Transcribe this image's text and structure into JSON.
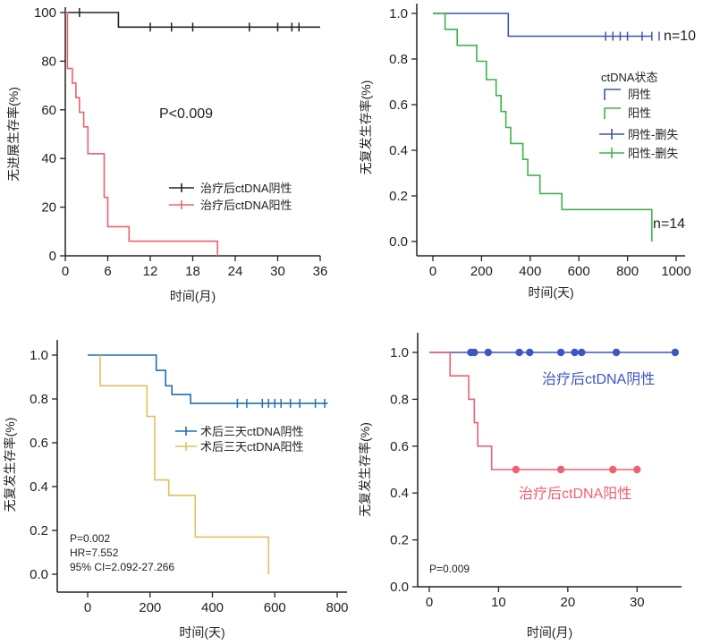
{
  "chart_data": [
    {
      "type": "line",
      "subtype": "kaplan-meier",
      "xlabel": "时间(月)",
      "ylabel": "无进展生存率(%)",
      "xlim": [
        0,
        36
      ],
      "ylim": [
        0,
        100
      ],
      "xticks": [
        0,
        6,
        12,
        18,
        24,
        30,
        36
      ],
      "yticks": [
        0,
        20,
        40,
        60,
        80,
        100
      ],
      "annotations": [
        "P<0.009"
      ],
      "legend_position": "right",
      "series": [
        {
          "name": "治疗后ctDNA阴性",
          "color": "#222222",
          "steps": [
            [
              0,
              100
            ],
            [
              7.5,
              100
            ],
            [
              7.5,
              94
            ],
            [
              36,
              94
            ]
          ],
          "censors": [
            [
              2,
              100
            ],
            [
              12,
              94
            ],
            [
              15,
              94
            ],
            [
              18,
              94
            ],
            [
              26,
              94
            ],
            [
              30,
              94
            ],
            [
              32,
              94
            ],
            [
              33,
              94
            ]
          ]
        },
        {
          "name": "治疗后ctDNA阳性",
          "color": "#ee6070",
          "steps": [
            [
              0,
              100
            ],
            [
              0.3,
              100
            ],
            [
              0.3,
              77
            ],
            [
              1,
              77
            ],
            [
              1,
              71
            ],
            [
              1.5,
              71
            ],
            [
              1.5,
              65
            ],
            [
              2,
              65
            ],
            [
              2,
              59
            ],
            [
              2.6,
              59
            ],
            [
              2.6,
              53
            ],
            [
              3.2,
              53
            ],
            [
              3.2,
              42
            ],
            [
              5.5,
              42
            ],
            [
              5.5,
              24
            ],
            [
              6,
              24
            ],
            [
              6,
              12
            ],
            [
              9,
              12
            ],
            [
              9,
              6
            ],
            [
              21.5,
              6
            ],
            [
              21.5,
              0
            ]
          ],
          "censors": []
        }
      ]
    },
    {
      "type": "line",
      "subtype": "kaplan-meier",
      "xlabel": "时间(天)",
      "ylabel": "无复发生存率(%)",
      "xlim": [
        0,
        1000
      ],
      "ylim": [
        0,
        1.0
      ],
      "xticks": [
        0,
        200,
        400,
        600,
        800,
        1000
      ],
      "yticks": [
        0.0,
        0.2,
        0.4,
        0.6,
        0.8,
        1.0
      ],
      "ytick_labels": [
        "0.0",
        "0.2",
        "0.4",
        "0.6",
        "0.8",
        "1.0"
      ],
      "legend_title": "ctDNA状态",
      "legend_items": [
        {
          "label": "阴性",
          "color": "#3a55b0",
          "marker": "step"
        },
        {
          "label": "阳性",
          "color": "#3fb24a",
          "marker": "step"
        },
        {
          "label": "阴性-删失",
          "color": "#3a55b0",
          "marker": "plus"
        },
        {
          "label": "阳性-删失",
          "color": "#3fb24a",
          "marker": "plus"
        }
      ],
      "annotations": [
        "n=10",
        "n=14"
      ],
      "series": [
        {
          "name": "阴性",
          "color": "#3a55b0",
          "steps": [
            [
              0,
              1.0
            ],
            [
              310,
              1.0
            ],
            [
              310,
              0.9
            ],
            [
              900,
              0.9
            ]
          ],
          "censors": [
            [
              710,
              0.9
            ],
            [
              740,
              0.9
            ],
            [
              770,
              0.9
            ],
            [
              800,
              0.9
            ],
            [
              860,
              0.9
            ],
            [
              900,
              0.9
            ],
            [
              930,
              0.9
            ]
          ]
        },
        {
          "name": "阳性",
          "color": "#3fb24a",
          "steps": [
            [
              0,
              1.0
            ],
            [
              50,
              1.0
            ],
            [
              50,
              0.93
            ],
            [
              100,
              0.93
            ],
            [
              100,
              0.86
            ],
            [
              180,
              0.86
            ],
            [
              180,
              0.79
            ],
            [
              220,
              0.79
            ],
            [
              220,
              0.71
            ],
            [
              260,
              0.71
            ],
            [
              260,
              0.64
            ],
            [
              280,
              0.64
            ],
            [
              280,
              0.57
            ],
            [
              300,
              0.57
            ],
            [
              300,
              0.5
            ],
            [
              320,
              0.5
            ],
            [
              320,
              0.43
            ],
            [
              370,
              0.43
            ],
            [
              370,
              0.36
            ],
            [
              390,
              0.36
            ],
            [
              390,
              0.29
            ],
            [
              440,
              0.29
            ],
            [
              440,
              0.21
            ],
            [
              530,
              0.21
            ],
            [
              530,
              0.14
            ],
            [
              900,
              0.14
            ],
            [
              900,
              0.0
            ]
          ],
          "censors": []
        }
      ]
    },
    {
      "type": "line",
      "subtype": "kaplan-meier",
      "xlabel": "时间(天)",
      "ylabel": "无复发生存率(%)",
      "xlim": [
        0,
        800
      ],
      "ylim": [
        0,
        1.0
      ],
      "xticks": [
        0,
        200,
        400,
        600,
        800
      ],
      "yticks": [
        0.0,
        0.2,
        0.4,
        0.6,
        0.8,
        1.0
      ],
      "ytick_labels": [
        "0.0",
        "0.2",
        "0.4",
        "0.6",
        "0.8",
        "1.0"
      ],
      "legend_position": "right",
      "annotations": [
        "P=0.002",
        "HR=7.552",
        "95% CI=2.092-27.266"
      ],
      "series": [
        {
          "name": "术后三天ctDNA阴性",
          "color": "#1f6fb0",
          "steps": [
            [
              0,
              1.0
            ],
            [
              220,
              1.0
            ],
            [
              220,
              0.93
            ],
            [
              250,
              0.93
            ],
            [
              250,
              0.86
            ],
            [
              270,
              0.86
            ],
            [
              270,
              0.82
            ],
            [
              330,
              0.82
            ],
            [
              330,
              0.78
            ],
            [
              770,
              0.78
            ]
          ],
          "censors": [
            [
              480,
              0.78
            ],
            [
              510,
              0.78
            ],
            [
              560,
              0.78
            ],
            [
              580,
              0.78
            ],
            [
              600,
              0.78
            ],
            [
              620,
              0.78
            ],
            [
              650,
              0.78
            ],
            [
              680,
              0.78
            ],
            [
              730,
              0.78
            ],
            [
              760,
              0.78
            ]
          ]
        },
        {
          "name": "术后三天ctDNA阳性",
          "color": "#e0c060",
          "steps": [
            [
              40,
              1.0
            ],
            [
              40,
              0.86
            ],
            [
              190,
              0.86
            ],
            [
              190,
              0.72
            ],
            [
              215,
              0.72
            ],
            [
              215,
              0.43
            ],
            [
              260,
              0.43
            ],
            [
              260,
              0.36
            ],
            [
              345,
              0.36
            ],
            [
              345,
              0.17
            ],
            [
              580,
              0.17
            ],
            [
              580,
              0.0
            ]
          ],
          "censors": []
        }
      ]
    },
    {
      "type": "line",
      "subtype": "kaplan-meier",
      "xlabel": "时间(月)",
      "ylabel": "无复发生存率(%)",
      "xlim": [
        0,
        35
      ],
      "ylim": [
        0,
        1.0
      ],
      "xticks": [
        0,
        10,
        20,
        30
      ],
      "yticks": [
        0.0,
        0.2,
        0.4,
        0.6,
        0.8,
        1.0
      ],
      "ytick_labels": [
        "0.0",
        "0.2",
        "0.4",
        "0.6",
        "0.8",
        "1.0"
      ],
      "annotations": [
        "P=0.009"
      ],
      "series": [
        {
          "name": "治疗后ctDNA阴性",
          "color": "#3f55c0",
          "steps": [
            [
              0,
              1.0
            ],
            [
              35.5,
              1.0
            ]
          ],
          "censors": [
            [
              6,
              1.0
            ],
            [
              6.5,
              1.0
            ],
            [
              8.5,
              1.0
            ],
            [
              13,
              1.0
            ],
            [
              14.5,
              1.0
            ],
            [
              19,
              1.0
            ],
            [
              21,
              1.0
            ],
            [
              22,
              1.0
            ],
            [
              27,
              1.0
            ],
            [
              35.5,
              1.0
            ]
          ]
        },
        {
          "name": "治疗后ctDNA阳性",
          "color": "#ef6070",
          "steps": [
            [
              0,
              1.0
            ],
            [
              3,
              1.0
            ],
            [
              3,
              0.9
            ],
            [
              5.7,
              0.9
            ],
            [
              5.7,
              0.8
            ],
            [
              6.5,
              0.8
            ],
            [
              6.5,
              0.7
            ],
            [
              7,
              0.7
            ],
            [
              7,
              0.6
            ],
            [
              9,
              0.6
            ],
            [
              9,
              0.5
            ],
            [
              30,
              0.5
            ]
          ],
          "censors": [
            [
              12.5,
              0.5
            ],
            [
              19,
              0.5
            ],
            [
              26.5,
              0.5
            ],
            [
              30,
              0.5
            ]
          ]
        }
      ]
    }
  ]
}
